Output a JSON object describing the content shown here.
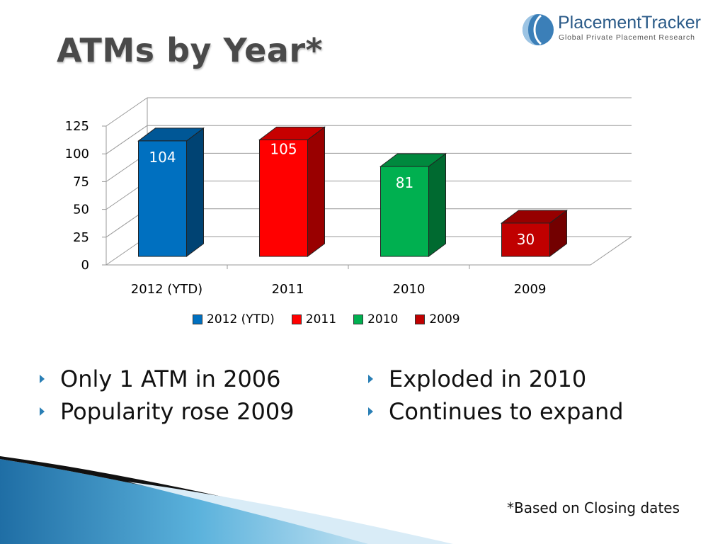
{
  "slide": {
    "title": "ATMs by Year*",
    "footnote": "*Based on Closing dates"
  },
  "logo": {
    "brand": "PlacementTracker",
    "tagline": "Global Private Placement Research"
  },
  "chart_data": {
    "type": "bar",
    "categories": [
      "2012 (YTD)",
      "2011",
      "2010",
      "2009"
    ],
    "values": [
      104,
      105,
      81,
      30
    ],
    "colors": [
      "#0070c0",
      "#ff0000",
      "#00b050",
      "#c00000"
    ],
    "yticks": [
      0,
      25,
      50,
      75,
      100,
      125
    ],
    "ylim": [
      0,
      125
    ],
    "grid": true,
    "legend_position": "bottom",
    "legend": [
      "2012 (YTD)",
      "2011",
      "2010",
      "2009"
    ],
    "title": "",
    "xlabel": "",
    "ylabel": ""
  },
  "bullets": {
    "left": [
      "Only 1 ATM in 2006",
      "Popularity rose 2009"
    ],
    "right": [
      "Exploded in 2010",
      "Continues to expand"
    ]
  }
}
